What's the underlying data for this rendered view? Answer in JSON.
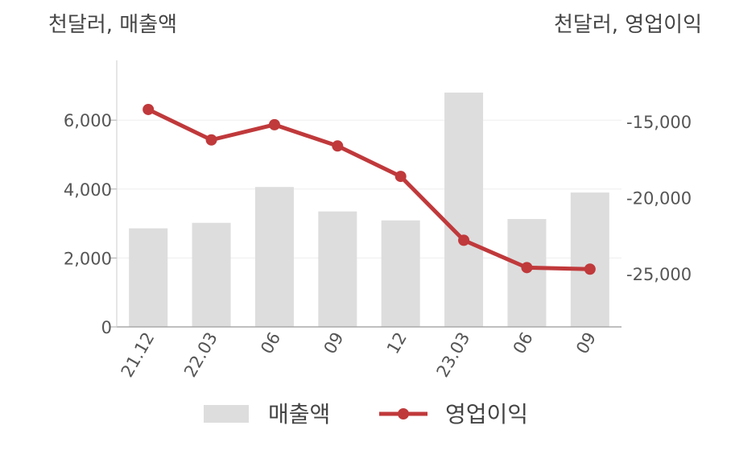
{
  "chart_data": {
    "type": "bar+line",
    "left_axis_unit": "천달러, 매출액",
    "right_axis_unit": "천달러, 영업이익",
    "categories": [
      "21.12",
      "22.03",
      "06",
      "09",
      "12",
      "23.03",
      "06",
      "09"
    ],
    "series": [
      {
        "name": "매출액",
        "type": "bar",
        "axis": "left",
        "color": "#dddddd",
        "values": [
          2860,
          3020,
          4060,
          3350,
          3090,
          6800,
          3130,
          3900
        ]
      },
      {
        "name": "영업이익",
        "type": "line",
        "axis": "right",
        "color": "#c0393b",
        "values": [
          -14200,
          -16200,
          -15200,
          -16600,
          -18600,
          -22800,
          -24600,
          -24700
        ]
      }
    ],
    "left_axis": {
      "min": 0,
      "max": 7500,
      "ticks": [
        0,
        2000,
        4000,
        6000
      ],
      "tick_labels": [
        "0",
        "2,000",
        "4,000",
        "6,000"
      ]
    },
    "right_axis": {
      "min": -28500,
      "max": -11500,
      "ticks": [
        -25000,
        -20000,
        -15000
      ],
      "tick_labels": [
        "-25,000",
        "-20,000",
        "-15,000"
      ]
    },
    "grid": true,
    "legend_position": "bottom"
  }
}
